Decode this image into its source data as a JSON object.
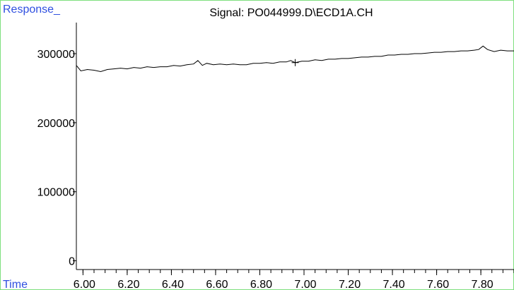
{
  "window": {
    "border_color": "#7ee07e",
    "axis_name_color": "#2f4fe0",
    "trace_color": "#000000"
  },
  "chart_data": {
    "type": "line",
    "title": "Signal: PO044999.D\\ECD1A.CH",
    "ylabel": "Response_",
    "xlabel": "Time",
    "xlim": [
      5.97,
      7.95
    ],
    "ylim": [
      -3000,
      345000
    ],
    "x_ticks": [
      6.0,
      6.2,
      6.4,
      6.6,
      6.8,
      7.0,
      7.2,
      7.4,
      7.6,
      7.8
    ],
    "x_tick_labels": [
      "6.00",
      "6.20",
      "6.40",
      "6.60",
      "6.80",
      "7.00",
      "7.20",
      "7.40",
      "7.60",
      "7.80"
    ],
    "x_minor_step": 0.05,
    "y_ticks": [
      0,
      100000,
      200000,
      300000
    ],
    "y_tick_labels": [
      "0",
      "100000",
      "200000",
      "300000"
    ],
    "grid": false,
    "series": [
      {
        "x": [
          5.97,
          5.99,
          6.02,
          6.05,
          6.08,
          6.11,
          6.14,
          6.17,
          6.2,
          6.23,
          6.26,
          6.29,
          6.32,
          6.35,
          6.38,
          6.41,
          6.44,
          6.47,
          6.5,
          6.52,
          6.54,
          6.56,
          6.59,
          6.62,
          6.65,
          6.68,
          6.71,
          6.74,
          6.77,
          6.8,
          6.83,
          6.86,
          6.89,
          6.92,
          6.94,
          6.96,
          6.99,
          7.02,
          7.05,
          7.08,
          7.11,
          7.14,
          7.17,
          7.2,
          7.23,
          7.26,
          7.29,
          7.32,
          7.35,
          7.38,
          7.41,
          7.44,
          7.47,
          7.5,
          7.53,
          7.56,
          7.59,
          7.62,
          7.65,
          7.68,
          7.71,
          7.74,
          7.77,
          7.79,
          7.81,
          7.83,
          7.86,
          7.89,
          7.92,
          7.95
        ],
        "y": [
          283000,
          275000,
          277000,
          276000,
          274000,
          277000,
          278000,
          279000,
          278000,
          280000,
          279000,
          281000,
          280000,
          281000,
          281000,
          283000,
          282000,
          284000,
          285000,
          290000,
          283000,
          286000,
          284000,
          285000,
          284000,
          285000,
          284000,
          284000,
          286000,
          286000,
          287000,
          286000,
          288000,
          288000,
          290000,
          287000,
          289000,
          289000,
          291000,
          290000,
          292000,
          292000,
          293000,
          293000,
          294000,
          295000,
          295000,
          296000,
          296000,
          298000,
          298000,
          299000,
          299000,
          300000,
          300000,
          301000,
          302000,
          302000,
          303000,
          303000,
          304000,
          304000,
          305000,
          306000,
          311000,
          306000,
          303000,
          305000,
          304000,
          304000
        ]
      }
    ],
    "annotations": [
      {
        "type": "cross-marker",
        "x": 6.96,
        "y": 287000
      }
    ]
  }
}
